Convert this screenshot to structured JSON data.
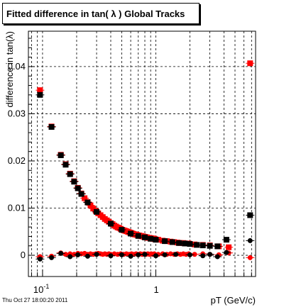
{
  "title": "Fitted difference in tan( λ )  Global Tracks",
  "timestamp": "Thu Oct 27 18:00:20 2011",
  "chart_data": {
    "type": "scatter",
    "title": "Fitted difference in tan( λ )  Global Tracks",
    "xlabel": "pT (GeV/c)",
    "ylabel": "difference in tan(λ)",
    "x_scale": "log",
    "xlim": [
      0.075,
      7.6
    ],
    "ylim": [
      -0.0045,
      0.0475
    ],
    "grid": true,
    "x_tick_labels": [
      "10^-1",
      "1"
    ],
    "y_ticks": [
      0,
      0.01,
      0.02,
      0.03,
      0.04
    ],
    "y_tick_labels": [
      "0",
      "0.01",
      "0.02",
      "0.03",
      "0.04"
    ],
    "series": [
      {
        "color": "#ff0000",
        "marker": "square",
        "x": [
          0.095,
          0.12,
          0.145,
          0.16,
          0.175,
          0.19,
          0.205,
          0.22,
          0.235,
          0.25,
          0.265,
          0.28,
          0.295,
          0.31,
          0.325,
          0.34,
          0.355,
          0.37,
          0.385,
          0.4,
          0.415,
          0.43,
          0.445,
          0.46,
          0.475,
          0.49,
          0.505,
          0.52,
          0.535,
          0.55,
          0.565,
          0.58,
          0.595,
          0.61,
          0.625,
          0.64,
          0.655,
          0.67,
          0.685,
          0.7,
          0.715,
          0.73,
          0.745,
          0.76,
          0.775,
          0.79,
          0.805,
          0.82,
          0.835,
          0.85,
          0.865,
          0.88,
          0.895,
          0.91,
          0.925,
          0.94,
          0.955,
          0.97,
          0.985,
          1.05,
          1.15,
          1.25,
          1.35,
          1.45,
          1.55,
          1.65,
          1.75,
          1.85,
          1.95,
          2.2,
          2.6,
          3.0,
          3.6,
          4.4,
          6.8
        ],
        "y": [
          0.035,
          0.0273,
          0.0213,
          0.0193,
          0.0173,
          0.0157,
          0.0143,
          0.0131,
          0.0121,
          0.0113,
          0.0106,
          0.0099,
          0.0094,
          0.0089,
          0.0085,
          0.0081,
          0.0077,
          0.0074,
          0.0071,
          0.0068,
          0.0066,
          0.0063,
          0.0061,
          0.0059,
          0.0058,
          0.0056,
          0.0054,
          0.0053,
          0.0052,
          0.0051,
          0.005,
          0.0049,
          0.0048,
          0.0047,
          0.0046,
          0.0045,
          0.0044,
          0.0044,
          0.0043,
          0.0042,
          0.0042,
          0.0041,
          0.0041,
          0.004,
          0.004,
          0.0039,
          0.0039,
          0.0038,
          0.0038,
          0.0037,
          0.0037,
          0.0037,
          0.0036,
          0.0036,
          0.0036,
          0.0035,
          0.0035,
          0.0035,
          0.0034,
          0.0033,
          0.0031,
          0.003,
          0.0029,
          0.0028,
          0.0027,
          0.0026,
          0.0026,
          0.0025,
          0.0025,
          0.0023,
          0.0022,
          0.0021,
          0.0019,
          0.0017,
          0.0407
        ]
      },
      {
        "color": "#000000",
        "marker": "square",
        "x": [
          0.095,
          0.12,
          0.145,
          0.16,
          0.175,
          0.19,
          0.205,
          0.22,
          0.25,
          0.3,
          0.4,
          0.5,
          0.6,
          0.7,
          0.8,
          0.9,
          1.0,
          1.2,
          1.4,
          1.6,
          1.8,
          2.0,
          2.3,
          2.6,
          3.0,
          3.5,
          4.2,
          6.8
        ],
        "y": [
          0.034,
          0.0272,
          0.0212,
          0.0192,
          0.0172,
          0.0156,
          0.0142,
          0.013,
          0.0112,
          0.0092,
          0.0067,
          0.0054,
          0.0046,
          0.0041,
          0.0038,
          0.0035,
          0.0033,
          0.003,
          0.0028,
          0.0026,
          0.0025,
          0.0024,
          0.0022,
          0.0021,
          0.002,
          0.0019,
          0.0033,
          0.0085
        ]
      },
      {
        "color": "#ff0000",
        "marker": "circle",
        "x": [
          0.095,
          0.12,
          0.145,
          0.16,
          0.175,
          0.19,
          0.205,
          0.22,
          0.235,
          0.25,
          0.265,
          0.28,
          0.295,
          0.31,
          0.325,
          0.34,
          0.355,
          0.37,
          0.385,
          0.4,
          0.43,
          0.46,
          0.49,
          0.52,
          0.55,
          0.58,
          0.61,
          0.64,
          0.67,
          0.7,
          0.73,
          0.76,
          0.79,
          0.82,
          0.85,
          0.88,
          0.91,
          0.94,
          0.97,
          1.05,
          1.15,
          1.25,
          1.35,
          1.45,
          1.55,
          1.65,
          1.75,
          1.85,
          1.95,
          2.2,
          2.6,
          3.0,
          3.6,
          4.4,
          6.8
        ],
        "y": [
          -0.0003,
          -0.0002,
          0.0005,
          0.0002,
          0.0003,
          0.0002,
          0.0004,
          0.0003,
          0.0004,
          0.0002,
          0.0003,
          0.0002,
          0.0003,
          0.0004,
          0.0003,
          0.0002,
          0.0003,
          0.0002,
          0.0003,
          0.0002,
          0.0003,
          0.0002,
          0.0003,
          0.0002,
          0.0003,
          0.0002,
          0.0003,
          0.0002,
          0.0003,
          0.0002,
          0.0003,
          0.0002,
          0.0003,
          0.0002,
          0.0003,
          0.0002,
          0.0003,
          0.0002,
          0.0003,
          0.0002,
          0.0003,
          0.0002,
          0.0003,
          0.0002,
          0.0003,
          0.0002,
          0.0003,
          0.0002,
          0.0003,
          0.0002,
          0.0003,
          0.0002,
          0.0001,
          0.0005,
          -0.0005
        ]
      },
      {
        "color": "#000000",
        "marker": "circle",
        "x": [
          0.095,
          0.12,
          0.145,
          0.175,
          0.205,
          0.25,
          0.3,
          0.4,
          0.5,
          0.6,
          0.7,
          0.8,
          1.0,
          1.2,
          1.5,
          2.0,
          2.6,
          3.0,
          3.5,
          4.2,
          6.8
        ],
        "y": [
          -0.0008,
          -0.0005,
          0.0004,
          -0.0003,
          0.0001,
          -0.0002,
          0.0002,
          -0.0001,
          0.0001,
          -0.0002,
          0.0001,
          0.0002,
          -0.0001,
          0.0001,
          0.0002,
          0.0001,
          -0.0001,
          0.0002,
          -0.0003,
          0.0006,
          0.0031
        ]
      }
    ]
  }
}
